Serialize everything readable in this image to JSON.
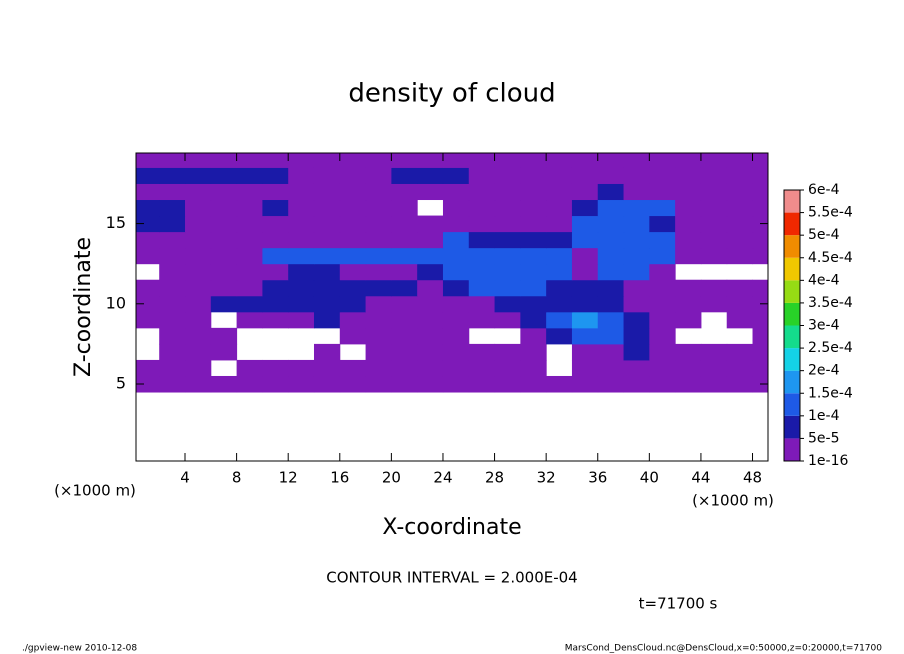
{
  "chart_data": {
    "type": "heatmap",
    "title": "density of cloud",
    "x_label": "X-coordinate",
    "y_label": "Z-coordinate",
    "x_unit": "(×1000 m)",
    "annotation": "CONTOUR INTERVAL = 2.000E-04",
    "time_label": "t=71700 s",
    "footer_left": "./gpview-new  2010-12-08",
    "footer_right": "MarsCond_DensCloud.nc@DensCloud,x=0:50000,z=0:20000,t=71700",
    "xlim": [
      0.2,
      49.2
    ],
    "ylim": [
      0.2,
      19.4
    ],
    "xticks": [
      4,
      8,
      12,
      16,
      20,
      24,
      28,
      32,
      36,
      40,
      44,
      48
    ],
    "yticks": [
      5,
      10,
      15
    ],
    "x": [
      1,
      3,
      5,
      7,
      9,
      11,
      13,
      15,
      17,
      19,
      21,
      23,
      25,
      27,
      29,
      31,
      33,
      35,
      37,
      39,
      41,
      43,
      45,
      47,
      49
    ],
    "z": [
      5,
      6,
      7,
      8,
      9,
      10,
      11,
      12,
      13,
      14,
      15,
      16,
      17,
      18,
      19
    ],
    "values": [
      [
        2e-05,
        2e-05,
        2e-05,
        2e-05,
        2e-05,
        2e-05,
        2e-05,
        2e-05,
        2e-05,
        2e-05,
        2e-05,
        2e-05,
        2e-05,
        2e-05,
        2e-05,
        2e-05,
        2e-05,
        2e-05,
        2e-05,
        2e-05,
        2e-05,
        2e-05,
        2e-05,
        2e-05,
        2e-05
      ],
      [
        2e-05,
        2e-05,
        2e-05,
        null,
        2e-05,
        2e-05,
        2e-05,
        2e-05,
        2e-05,
        2e-05,
        2e-05,
        2e-05,
        2e-05,
        2e-05,
        2e-05,
        2e-05,
        null,
        2e-05,
        2e-05,
        2e-05,
        2e-05,
        2e-05,
        2e-05,
        2e-05,
        2e-05
      ],
      [
        null,
        2e-05,
        2e-05,
        2e-05,
        null,
        null,
        null,
        2e-05,
        null,
        2e-05,
        2e-05,
        2e-05,
        2e-05,
        2e-05,
        2e-05,
        2e-05,
        null,
        2e-05,
        2e-05,
        7e-05,
        2e-05,
        2e-05,
        2e-05,
        2e-05,
        2e-05
      ],
      [
        null,
        2e-05,
        2e-05,
        2e-05,
        null,
        null,
        null,
        null,
        2e-05,
        2e-05,
        2e-05,
        2e-05,
        2e-05,
        null,
        null,
        2e-05,
        7e-05,
        0.00012,
        0.00012,
        7e-05,
        2e-05,
        null,
        null,
        null,
        2e-05
      ],
      [
        2e-05,
        2e-05,
        2e-05,
        null,
        2e-05,
        2e-05,
        2e-05,
        7e-05,
        2e-05,
        2e-05,
        2e-05,
        2e-05,
        2e-05,
        2e-05,
        2e-05,
        7e-05,
        0.00012,
        0.00017,
        0.00012,
        7e-05,
        2e-05,
        2e-05,
        null,
        2e-05,
        2e-05
      ],
      [
        2e-05,
        2e-05,
        2e-05,
        7e-05,
        7e-05,
        7e-05,
        7e-05,
        7e-05,
        7e-05,
        2e-05,
        2e-05,
        2e-05,
        2e-05,
        2e-05,
        7e-05,
        7e-05,
        7e-05,
        7e-05,
        7e-05,
        2e-05,
        2e-05,
        2e-05,
        2e-05,
        2e-05,
        2e-05
      ],
      [
        2e-05,
        2e-05,
        2e-05,
        2e-05,
        2e-05,
        7e-05,
        7e-05,
        7e-05,
        7e-05,
        7e-05,
        7e-05,
        2e-05,
        7e-05,
        0.00012,
        0.00012,
        0.00012,
        7e-05,
        7e-05,
        7e-05,
        2e-05,
        2e-05,
        2e-05,
        2e-05,
        2e-05,
        2e-05
      ],
      [
        null,
        2e-05,
        2e-05,
        2e-05,
        2e-05,
        2e-05,
        7e-05,
        7e-05,
        2e-05,
        2e-05,
        2e-05,
        7e-05,
        0.00012,
        0.00012,
        0.00012,
        0.00012,
        0.00012,
        2e-05,
        0.00012,
        0.00012,
        2e-05,
        null,
        null,
        null,
        null
      ],
      [
        2e-05,
        2e-05,
        2e-05,
        2e-05,
        2e-05,
        0.00012,
        0.00012,
        0.00012,
        0.00012,
        0.00012,
        0.00012,
        0.00012,
        0.00012,
        0.00012,
        0.00012,
        0.00012,
        0.00012,
        2e-05,
        0.00012,
        0.00012,
        0.00012,
        2e-05,
        2e-05,
        2e-05,
        2e-05
      ],
      [
        2e-05,
        2e-05,
        2e-05,
        2e-05,
        2e-05,
        2e-05,
        2e-05,
        2e-05,
        2e-05,
        2e-05,
        2e-05,
        2e-05,
        0.00012,
        7e-05,
        7e-05,
        7e-05,
        7e-05,
        0.00012,
        0.00012,
        0.00012,
        0.00012,
        2e-05,
        2e-05,
        2e-05,
        2e-05
      ],
      [
        7e-05,
        7e-05,
        2e-05,
        2e-05,
        2e-05,
        2e-05,
        2e-05,
        2e-05,
        2e-05,
        2e-05,
        2e-05,
        2e-05,
        2e-05,
        2e-05,
        2e-05,
        2e-05,
        2e-05,
        0.00012,
        0.00012,
        0.00012,
        7e-05,
        2e-05,
        2e-05,
        2e-05,
        2e-05
      ],
      [
        7e-05,
        7e-05,
        2e-05,
        2e-05,
        2e-05,
        7e-05,
        2e-05,
        2e-05,
        2e-05,
        2e-05,
        2e-05,
        null,
        2e-05,
        2e-05,
        2e-05,
        2e-05,
        2e-05,
        7e-05,
        0.00012,
        0.00012,
        0.00012,
        2e-05,
        2e-05,
        2e-05,
        2e-05
      ],
      [
        2e-05,
        2e-05,
        2e-05,
        2e-05,
        2e-05,
        2e-05,
        2e-05,
        2e-05,
        2e-05,
        2e-05,
        2e-05,
        2e-05,
        2e-05,
        2e-05,
        2e-05,
        2e-05,
        2e-05,
        2e-05,
        7e-05,
        2e-05,
        2e-05,
        2e-05,
        2e-05,
        2e-05,
        2e-05
      ],
      [
        7e-05,
        7e-05,
        7e-05,
        7e-05,
        7e-05,
        7e-05,
        2e-05,
        2e-05,
        2e-05,
        2e-05,
        7e-05,
        7e-05,
        7e-05,
        2e-05,
        2e-05,
        2e-05,
        2e-05,
        2e-05,
        2e-05,
        2e-05,
        2e-05,
        2e-05,
        2e-05,
        2e-05,
        2e-05
      ],
      [
        2e-05,
        2e-05,
        2e-05,
        2e-05,
        2e-05,
        2e-05,
        2e-05,
        2e-05,
        2e-05,
        2e-05,
        2e-05,
        2e-05,
        2e-05,
        2e-05,
        2e-05,
        2e-05,
        2e-05,
        2e-05,
        2e-05,
        2e-05,
        2e-05,
        2e-05,
        2e-05,
        2e-05,
        2e-05
      ]
    ],
    "levels": [
      {
        "value": 1e-16,
        "label": "1e-16"
      },
      {
        "value": 5e-05,
        "label": "5e-5"
      },
      {
        "value": 0.0001,
        "label": "1e-4"
      },
      {
        "value": 0.00015,
        "label": "1.5e-4"
      },
      {
        "value": 0.0002,
        "label": "2e-4"
      },
      {
        "value": 0.00025,
        "label": "2.5e-4"
      },
      {
        "value": 0.0003,
        "label": "3e-4"
      },
      {
        "value": 0.00035,
        "label": "3.5e-4"
      },
      {
        "value": 0.0004,
        "label": "4e-4"
      },
      {
        "value": 0.00045,
        "label": "4.5e-4"
      },
      {
        "value": 0.0005,
        "label": "5e-4"
      },
      {
        "value": 0.00055,
        "label": "5.5e-4"
      },
      {
        "value": 0.0006,
        "label": "6e-4"
      }
    ],
    "level_colors": [
      "#7e1ab8",
      "#1a1aa8",
      "#1e5ae6",
      "#1e96f0",
      "#14d2e6",
      "#14dc8c",
      "#28d228",
      "#96dc14",
      "#f0c800",
      "#f08c00",
      "#f02800",
      "#f08c8c"
    ]
  }
}
